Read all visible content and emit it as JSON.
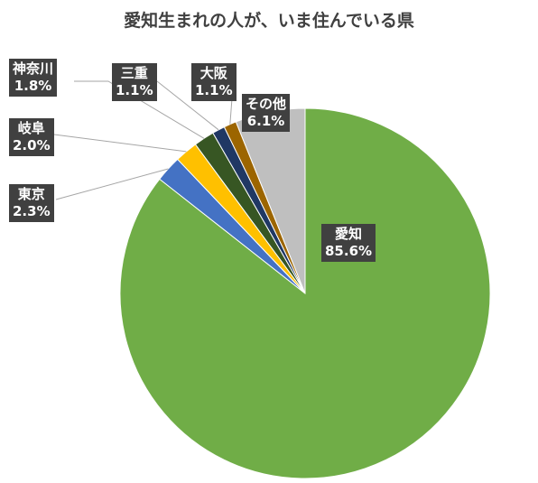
{
  "chart_data": {
    "type": "pie",
    "title": "愛知生まれの人が、いま住んでいる県",
    "slices": [
      {
        "label": "愛知",
        "pct_text": "85.6%",
        "value": 85.6,
        "color": "#70ad47"
      },
      {
        "label": "東京",
        "pct_text": "2.3%",
        "value": 2.3,
        "color": "#4472c4"
      },
      {
        "label": "岐阜",
        "pct_text": "2.0%",
        "value": 2.0,
        "color": "#ffc000"
      },
      {
        "label": "神奈川",
        "pct_text": "1.8%",
        "value": 1.8,
        "color": "#375623"
      },
      {
        "label": "三重",
        "pct_text": "1.1%",
        "value": 1.1,
        "color": "#203864"
      },
      {
        "label": "大阪",
        "pct_text": "1.1%",
        "value": 1.1,
        "color": "#9c6500"
      },
      {
        "label": "その他",
        "pct_text": "6.1%",
        "value": 6.1,
        "color": "#bfbfbf"
      }
    ],
    "legend": "none",
    "data_labels": "outside with leader lines"
  }
}
